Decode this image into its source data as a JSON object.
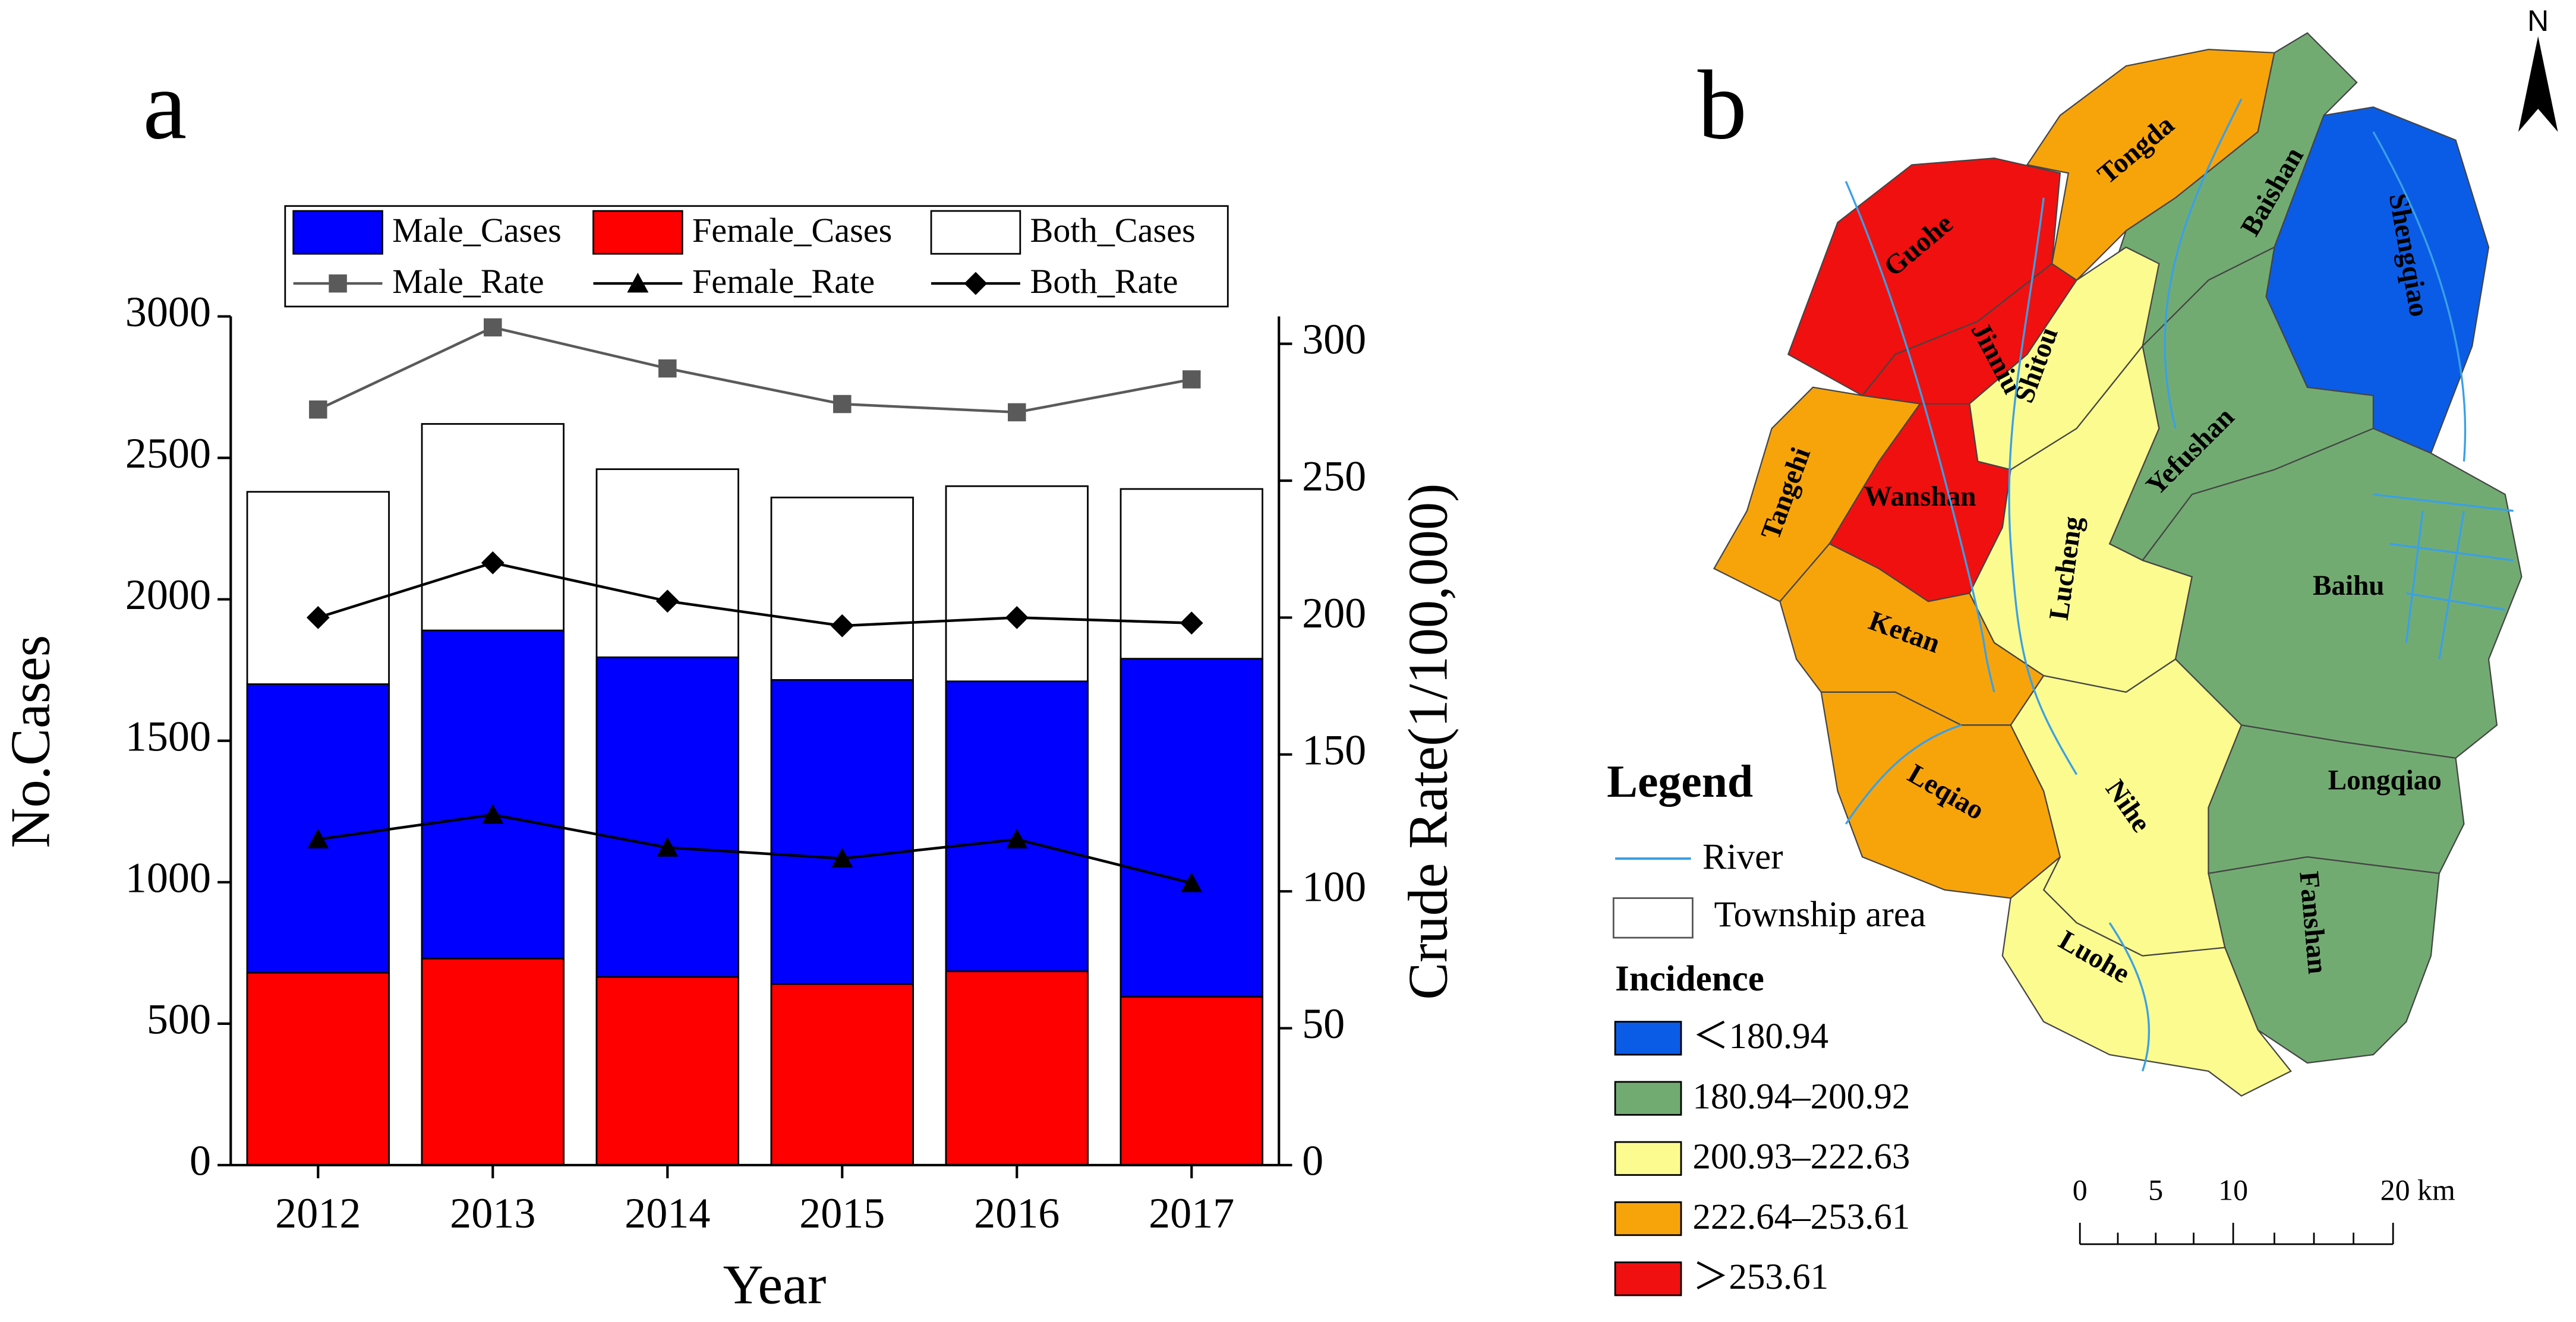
{
  "chart_data": {
    "type": "bar",
    "panel_label": "a",
    "categories": [
      "2012",
      "2013",
      "2014",
      "2015",
      "2016",
      "2017"
    ],
    "xlabel": "Year",
    "ylabel": "No.Cases",
    "y2label": "Crude Rate(1/100,000)",
    "ylim": [
      0,
      3000
    ],
    "yticks": [
      0,
      500,
      1000,
      1500,
      2000,
      2500,
      3000
    ],
    "y2lim": [
      0,
      310
    ],
    "y2ticks": [
      0,
      50,
      100,
      150,
      200,
      250,
      300
    ],
    "series": [
      {
        "name": "Male_Cases",
        "type": "bar",
        "color": "#0000ff",
        "values": [
          1700,
          1890,
          1795,
          1715,
          1710,
          1790
        ]
      },
      {
        "name": "Female_Cases",
        "type": "bar",
        "color": "#ff0000",
        "values": [
          680,
          730,
          665,
          640,
          685,
          595
        ]
      },
      {
        "name": "Both_Cases",
        "type": "bar",
        "color": "#ffffff",
        "values": [
          2380,
          2620,
          2460,
          2360,
          2400,
          2390
        ]
      },
      {
        "name": "Male_Rate",
        "type": "line",
        "axis": "y2",
        "color": "#5a5a5a",
        "marker": "square",
        "values": [
          276,
          306,
          291,
          278,
          275,
          287
        ]
      },
      {
        "name": "Female_Rate",
        "type": "line",
        "axis": "y2",
        "color": "#000000",
        "marker": "triangle",
        "values": [
          119,
          128,
          116,
          112,
          119,
          103
        ]
      },
      {
        "name": "Both_Rate",
        "type": "line",
        "axis": "y2",
        "color": "#000000",
        "marker": "diamond",
        "values": [
          200,
          220,
          206,
          197,
          200,
          198
        ]
      }
    ]
  },
  "map": {
    "panel_label": "b",
    "north": "N",
    "legend": {
      "title": "Legend",
      "river": "River",
      "township": "Township area",
      "incidence_title": "Incidence",
      "classes": [
        {
          "label": "＜180.94",
          "color": "#0a5ce6"
        },
        {
          "label": "180.94–200.92",
          "color": "#72ab72"
        },
        {
          "label": "200.93–222.63",
          "color": "#fbfb8f"
        },
        {
          "label": "222.64–253.61",
          "color": "#f7a40b"
        },
        {
          "label": "＞253.61",
          "color": "#f01010"
        }
      ]
    },
    "scale": [
      "0",
      "5",
      "10",
      "20 km"
    ],
    "townships": [
      {
        "name": "Tongda",
        "class": 3
      },
      {
        "name": "Baishan",
        "class": 1
      },
      {
        "name": "Shengqiao",
        "class": 0
      },
      {
        "name": "Guohe",
        "class": 4
      },
      {
        "name": "Jinniu",
        "class": 4
      },
      {
        "name": "Shitou",
        "class": 2
      },
      {
        "name": "Wanshan",
        "class": 4
      },
      {
        "name": "Tangehi",
        "class": 3
      },
      {
        "name": "Yefushan",
        "class": 1
      },
      {
        "name": "Lucheng",
        "class": 2
      },
      {
        "name": "Baihu",
        "class": 1
      },
      {
        "name": "Ketan",
        "class": 3
      },
      {
        "name": "Leqiao",
        "class": 3
      },
      {
        "name": "Nihe",
        "class": 2
      },
      {
        "name": "Longqiao",
        "class": 1
      },
      {
        "name": "Fanshan",
        "class": 1
      },
      {
        "name": "Luohe",
        "class": 2
      }
    ]
  }
}
